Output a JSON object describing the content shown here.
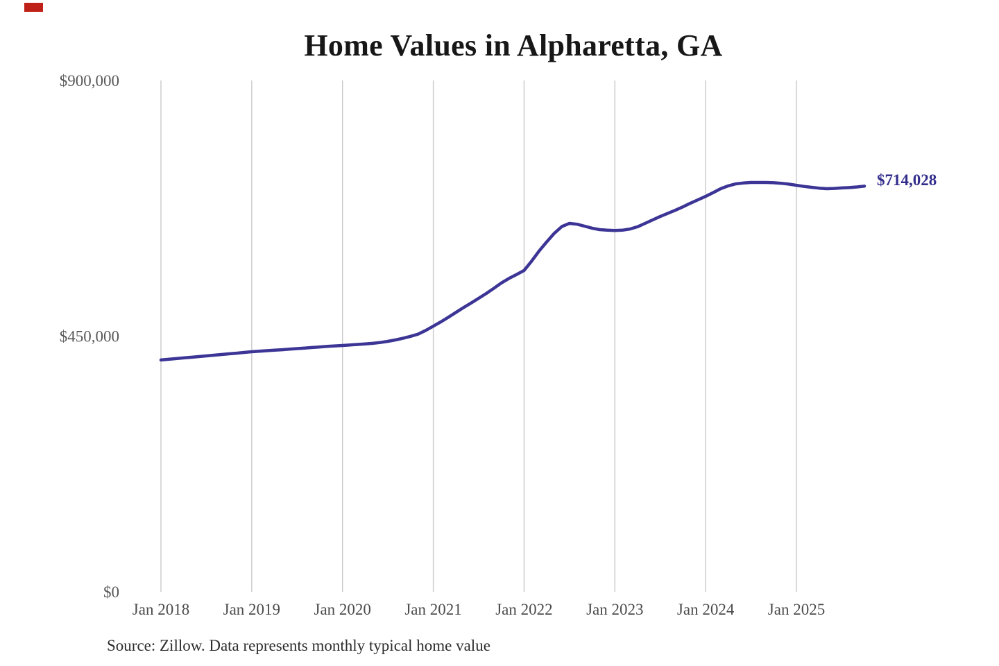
{
  "title": "Home Values in Alpharetta, GA",
  "source_note": "Source: Zillow. Data represents monthly typical home value",
  "end_label": "$714,028",
  "red_marker_color": "#bf2017",
  "colors": {
    "line": "#3c3596",
    "end_label": "#322d8b",
    "gridline": "#c9c9c9",
    "background": "#ffffff"
  },
  "chart_data": {
    "type": "line",
    "title": "Home Values in Alpharetta, GA",
    "series_name": "Monthly typical home value",
    "xlabel": "",
    "ylabel": "",
    "ylim": [
      0,
      900000
    ],
    "grid": "vertical-only",
    "legend": "none",
    "line_color": "#3c3596",
    "last_value": 714028,
    "last_value_label": "$714,028",
    "y_ticks": [
      {
        "value": 900000,
        "label": "$900,000"
      },
      {
        "value": 450000,
        "label": "$450,000"
      },
      {
        "value": 0,
        "label": "$0"
      }
    ],
    "x_tick_labels": [
      "Jan 2018",
      "Jan 2019",
      "Jan 2020",
      "Jan 2021",
      "Jan 2022",
      "Jan 2023",
      "Jan 2024",
      "Jan 2025"
    ],
    "x": [
      "Jan 2018",
      "Feb 2018",
      "Mar 2018",
      "Apr 2018",
      "May 2018",
      "Jun 2018",
      "Jul 2018",
      "Aug 2018",
      "Sep 2018",
      "Oct 2018",
      "Nov 2018",
      "Dec 2018",
      "Jan 2019",
      "Feb 2019",
      "Mar 2019",
      "Apr 2019",
      "May 2019",
      "Jun 2019",
      "Jul 2019",
      "Aug 2019",
      "Sep 2019",
      "Oct 2019",
      "Nov 2019",
      "Dec 2019",
      "Jan 2020",
      "Feb 2020",
      "Mar 2020",
      "Apr 2020",
      "May 2020",
      "Jun 2020",
      "Jul 2020",
      "Aug 2020",
      "Sep 2020",
      "Oct 2020",
      "Nov 2020",
      "Dec 2020",
      "Jan 2021",
      "Feb 2021",
      "Mar 2021",
      "Apr 2021",
      "May 2021",
      "Jun 2021",
      "Jul 2021",
      "Aug 2021",
      "Sep 2021",
      "Oct 2021",
      "Nov 2021",
      "Dec 2021",
      "Jan 2022",
      "Feb 2022",
      "Mar 2022",
      "Apr 2022",
      "May 2022",
      "Jun 2022",
      "Jul 2022",
      "Aug 2022",
      "Sep 2022",
      "Oct 2022",
      "Nov 2022",
      "Dec 2022",
      "Jan 2023",
      "Feb 2023",
      "Mar 2023",
      "Apr 2023",
      "May 2023",
      "Jun 2023",
      "Jul 2023",
      "Aug 2023",
      "Sep 2023",
      "Oct 2023",
      "Nov 2023",
      "Dec 2023",
      "Jan 2024",
      "Feb 2024",
      "Mar 2024",
      "Apr 2024",
      "May 2024",
      "Jun 2024",
      "Jul 2024",
      "Aug 2024",
      "Sep 2024",
      "Oct 2024",
      "Nov 2024",
      "Dec 2024",
      "Jan 2025",
      "Feb 2025",
      "Mar 2025",
      "Apr 2025",
      "May 2025",
      "Jun 2025",
      "Jul 2025",
      "Aug 2025",
      "Sep 2025",
      "Oct 2025"
    ],
    "values": [
      408000,
      409200,
      410400,
      411600,
      412800,
      414000,
      415200,
      416400,
      417600,
      418800,
      420000,
      421300,
      422500,
      423400,
      424300,
      425200,
      426100,
      427000,
      428000,
      429000,
      430000,
      431000,
      432000,
      432800,
      433500,
      434500,
      435400,
      436300,
      437300,
      438800,
      440800,
      443300,
      446200,
      449600,
      453600,
      460000,
      467500,
      475000,
      483200,
      491800,
      500200,
      508300,
      516500,
      525000,
      534000,
      543500,
      551500,
      558500,
      565500,
      582000,
      600000,
      616000,
      631000,
      643000,
      648500,
      647000,
      643500,
      640000,
      637500,
      636500,
      636000,
      636500,
      638500,
      642500,
      648500,
      654500,
      660500,
      666000,
      671500,
      677500,
      684000,
      690000,
      696000,
      702500,
      709500,
      714500,
      718000,
      719500,
      720500,
      720500,
      720500,
      720000,
      719000,
      717500,
      715500,
      713500,
      712000,
      710500,
      709500,
      710000,
      710800,
      711500,
      712500,
      714028
    ]
  }
}
